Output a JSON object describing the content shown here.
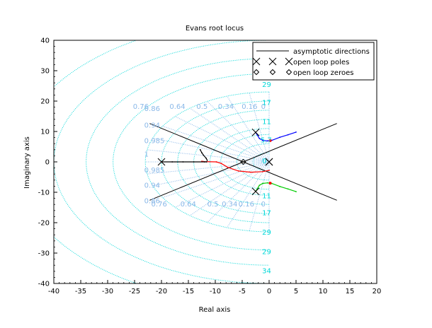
{
  "chart_data": {
    "type": "line",
    "title": "Evans root locus",
    "xlabel": "Real axis",
    "ylabel": "Imaginary axis",
    "xlim": [
      -40,
      20
    ],
    "ylim": [
      -40,
      40
    ],
    "xticks": [
      "-40",
      "-35",
      "-30",
      "-25",
      "-20",
      "-15",
      "-10",
      "-5",
      "0",
      "5",
      "10",
      "15",
      "20"
    ],
    "yticks": [
      "40",
      "30",
      "20",
      "10",
      "0",
      "-10",
      "-20",
      "-30",
      "-40"
    ],
    "legend_position": "top-right",
    "legend": [
      {
        "label": "asymptotic directions",
        "marker": "line"
      },
      {
        "label": "open loop poles",
        "marker": "×"
      },
      {
        "label": "open loop zeroes",
        "marker": "◇"
      }
    ],
    "colors": {
      "axes": "#000000",
      "grid_zeta": "#8ab8e8",
      "grid_wn": "#00d8d8",
      "asymptote": "#000000",
      "branch_blue": "#0000ff",
      "branch_green": "#00cc00",
      "branch_red": "#ff0000",
      "branch_black": "#000000"
    },
    "asymptote_center": [
      -4.8,
      0
    ],
    "asymptote_angles_deg": [
      36,
      144,
      216,
      324
    ],
    "open_loop_poles": [
      {
        "x": -20,
        "y": 0
      },
      {
        "x": -2.5,
        "y": 9.7
      },
      {
        "x": -2.5,
        "y": -9.7
      },
      {
        "x": 0,
        "y": 0
      },
      {
        "x": 0,
        "y": 0
      }
    ],
    "open_loop_zeroes": [
      {
        "x": -4.8,
        "y": 0
      }
    ],
    "grid_zeta_values": [
      0.16,
      0.34,
      0.5,
      0.64,
      0.76,
      0.86,
      0.94,
      0.985,
      1
    ],
    "grid_wn_values": [
      0,
      5.7,
      11,
      17,
      23,
      29,
      34
    ],
    "grid_zeta_labels": [
      {
        "text": "0.76",
        "x": -25.3,
        "y": 17.5
      },
      {
        "text": "0.86",
        "x": -23.2,
        "y": 16.8
      },
      {
        "text": "0.64",
        "x": -18.5,
        "y": 17.5
      },
      {
        "text": "0.5",
        "x": -13.5,
        "y": 17.5
      },
      {
        "text": "0.34",
        "x": -9.5,
        "y": 17.5
      },
      {
        "text": "0.16",
        "x": -5.1,
        "y": 17.5
      },
      {
        "text": "0",
        "x": -1.5,
        "y": 17.5
      },
      {
        "text": "0.94",
        "x": -23.2,
        "y": 11.3
      },
      {
        "text": "0.985",
        "x": -23.2,
        "y": 6.2
      },
      {
        "text": "1",
        "x": -23.2,
        "y": 1.8
      },
      {
        "text": "0.985",
        "x": -23.2,
        "y": -3.5
      },
      {
        "text": "0.94",
        "x": -23.2,
        "y": -8.5
      },
      {
        "text": "0.86",
        "x": -23.2,
        "y": -13.6
      },
      {
        "text": "0.76",
        "x": -21.9,
        "y": -14.6
      },
      {
        "text": "0.64",
        "x": -16.5,
        "y": -14.6
      },
      {
        "text": "0.5",
        "x": -11.5,
        "y": -14.6
      },
      {
        "text": "0.34",
        "x": -8.8,
        "y": -14.6
      },
      {
        "text": "0.16",
        "x": -5.7,
        "y": -14.6
      },
      {
        "text": "0",
        "x": -1.5,
        "y": -14.6
      }
    ],
    "grid_wn_labels": [
      {
        "text": "29",
        "x": -1.3,
        "y": 24.6
      },
      {
        "text": "17",
        "x": -1.3,
        "y": 18.7
      },
      {
        "text": "11",
        "x": -1.3,
        "y": 12.4
      },
      {
        "text": "5.7",
        "x": -1.6,
        "y": 6.4
      },
      {
        "text": "0",
        "x": -1.3,
        "y": -0.5
      },
      {
        "text": "11",
        "x": -1.3,
        "y": -12.0
      },
      {
        "text": "17",
        "x": -1.3,
        "y": -17.6
      },
      {
        "text": "29",
        "x": -1.3,
        "y": -24.0
      },
      {
        "text": "29",
        "x": -1.3,
        "y": -30.3
      },
      {
        "text": "34",
        "x": -1.3,
        "y": -36.6
      }
    ],
    "series": [
      {
        "color": "blue",
        "points": [
          [
            -2.5,
            9.7
          ],
          [
            -1.8,
            7.7
          ],
          [
            -1.2,
            7.1
          ],
          [
            -0.3,
            6.9
          ],
          [
            0.5,
            7.1
          ],
          [
            2,
            8.1
          ],
          [
            3.5,
            8.9
          ],
          [
            5,
            9.8
          ]
        ]
      },
      {
        "color": "green",
        "points": [
          [
            -2.5,
            -9.7
          ],
          [
            -1.8,
            -7.7
          ],
          [
            -1.2,
            -7.1
          ],
          [
            -0.3,
            -6.9
          ],
          [
            0.5,
            -7.1
          ],
          [
            2,
            -8.1
          ],
          [
            3.5,
            -8.9
          ],
          [
            5,
            -9.8
          ]
        ]
      },
      {
        "color": "red",
        "points": [
          [
            0,
            -2.8
          ],
          [
            -1.2,
            -3.2
          ],
          [
            -3.4,
            -3.4
          ],
          [
            -5.7,
            -3.0
          ],
          [
            -7.7,
            -1.8
          ],
          [
            -8.9,
            -0.5
          ],
          [
            -9.8,
            0.0
          ],
          [
            -12.2,
            0.1
          ],
          [
            -12.5,
            0.2
          ]
        ]
      },
      {
        "color": "black",
        "points": [
          [
            -12.8,
            4.0
          ],
          [
            -12.5,
            3.0
          ],
          [
            -12.2,
            2.2
          ],
          [
            -11.7,
            1.2
          ],
          [
            -11.5,
            0.5
          ]
        ]
      },
      {
        "color": "black",
        "points": [
          [
            -20,
            0
          ],
          [
            -18,
            0
          ],
          [
            -16,
            0
          ],
          [
            -14,
            0
          ],
          [
            -12,
            0
          ],
          [
            -11.6,
            0
          ]
        ]
      }
    ]
  }
}
